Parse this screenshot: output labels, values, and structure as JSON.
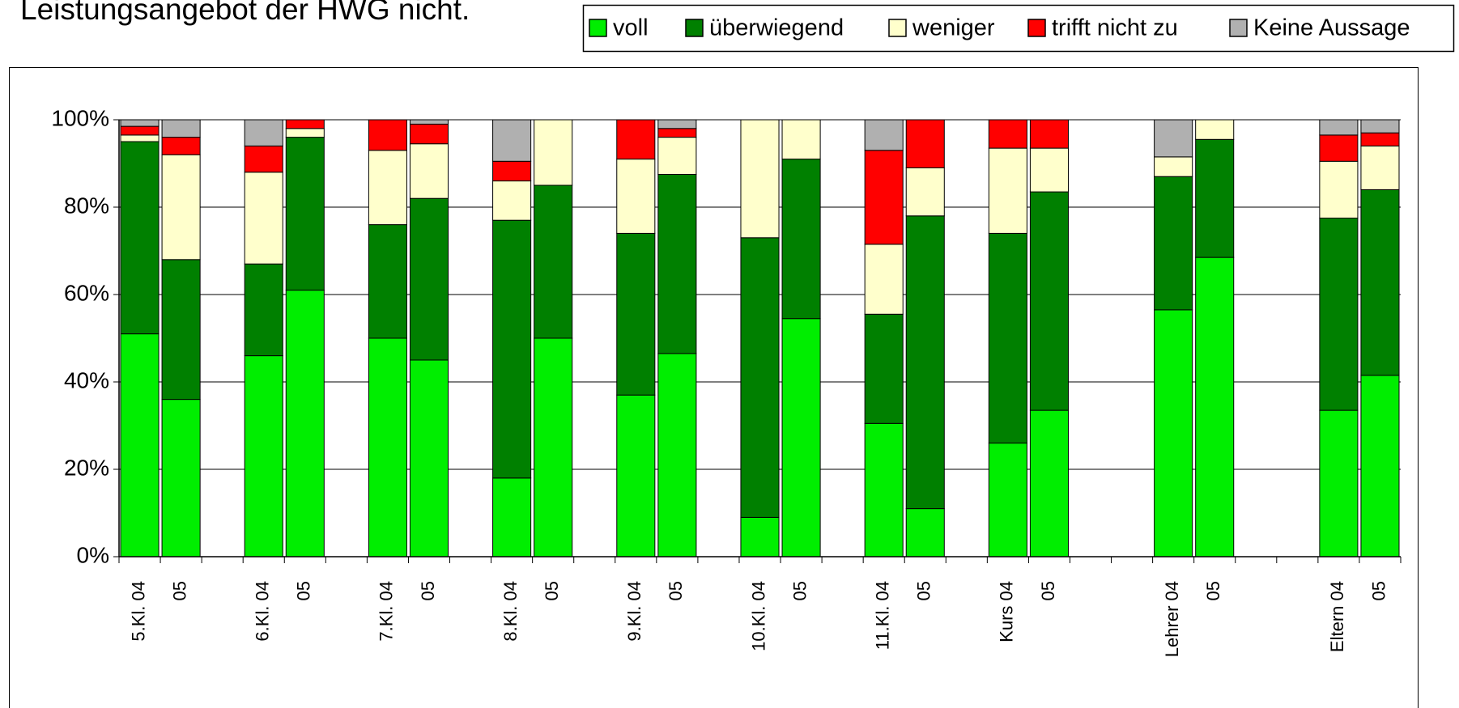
{
  "chart_data": {
    "type": "stacked_bar",
    "title": "Leistungsangebot der HWG nicht.",
    "categories": [
      "5.Kl. 04",
      "05",
      null,
      "6.Kl. 04",
      "05",
      null,
      "7.Kl. 04",
      "05",
      null,
      "8.Kl. 04",
      "05",
      null,
      "9.Kl. 04",
      "05",
      null,
      "10.Kl. 04",
      "05",
      null,
      "11.Kl. 04",
      "05",
      null,
      "Kurs 04",
      "05",
      null,
      null,
      "Lehrer 04",
      "05",
      null,
      null,
      "Eltern 04",
      "05"
    ],
    "series": [
      {
        "name": "voll",
        "color": "#00ee00",
        "values": [
          51,
          36,
          null,
          46,
          61,
          null,
          50,
          45,
          null,
          18,
          50,
          null,
          37,
          46.5,
          null,
          9,
          54.5,
          null,
          30.5,
          11,
          null,
          26,
          33.5,
          null,
          null,
          56.5,
          68.5,
          null,
          null,
          33.5,
          41.5
        ]
      },
      {
        "name": "überwiegend",
        "color": "#008000",
        "values": [
          44,
          32,
          null,
          21,
          35,
          null,
          26,
          37,
          null,
          59,
          35,
          null,
          37,
          41,
          null,
          64,
          36.5,
          null,
          25,
          67,
          null,
          48,
          50,
          null,
          null,
          30.5,
          27,
          null,
          null,
          44,
          42.5
        ]
      },
      {
        "name": "weniger",
        "color": "#ffffcc",
        "values": [
          1.5,
          24,
          null,
          21,
          2,
          null,
          17,
          12.5,
          null,
          9,
          15,
          null,
          17,
          8.5,
          null,
          27,
          9,
          null,
          16,
          11,
          null,
          19.5,
          10,
          null,
          null,
          4.5,
          4.5,
          null,
          null,
          13,
          10
        ]
      },
      {
        "name": "trifft nicht zu",
        "color": "#ff0000",
        "values": [
          2,
          4,
          null,
          6,
          2,
          null,
          7,
          4.5,
          null,
          4.5,
          0,
          null,
          9,
          2,
          null,
          0,
          0,
          null,
          21.5,
          11,
          null,
          6.5,
          6.5,
          null,
          null,
          0,
          0,
          null,
          null,
          6,
          3
        ]
      },
      {
        "name": "Keine Aussage",
        "color": "#b0b0b0",
        "values": [
          1.5,
          4,
          null,
          6,
          0,
          null,
          0,
          1,
          null,
          9.5,
          0,
          null,
          0,
          2,
          null,
          0,
          0,
          null,
          7,
          0,
          null,
          0,
          0,
          null,
          null,
          8.5,
          0,
          null,
          null,
          3.5,
          3
        ]
      }
    ],
    "ylim": [
      0,
      100
    ],
    "yticks": [
      {
        "value": 0,
        "label": "0%"
      },
      {
        "value": 20,
        "label": "20%"
      },
      {
        "value": 40,
        "label": "40%"
      },
      {
        "value": 60,
        "label": "60%"
      },
      {
        "value": 80,
        "label": "80%"
      },
      {
        "value": 100,
        "label": "100%"
      }
    ],
    "grid": true,
    "legend": "top"
  }
}
